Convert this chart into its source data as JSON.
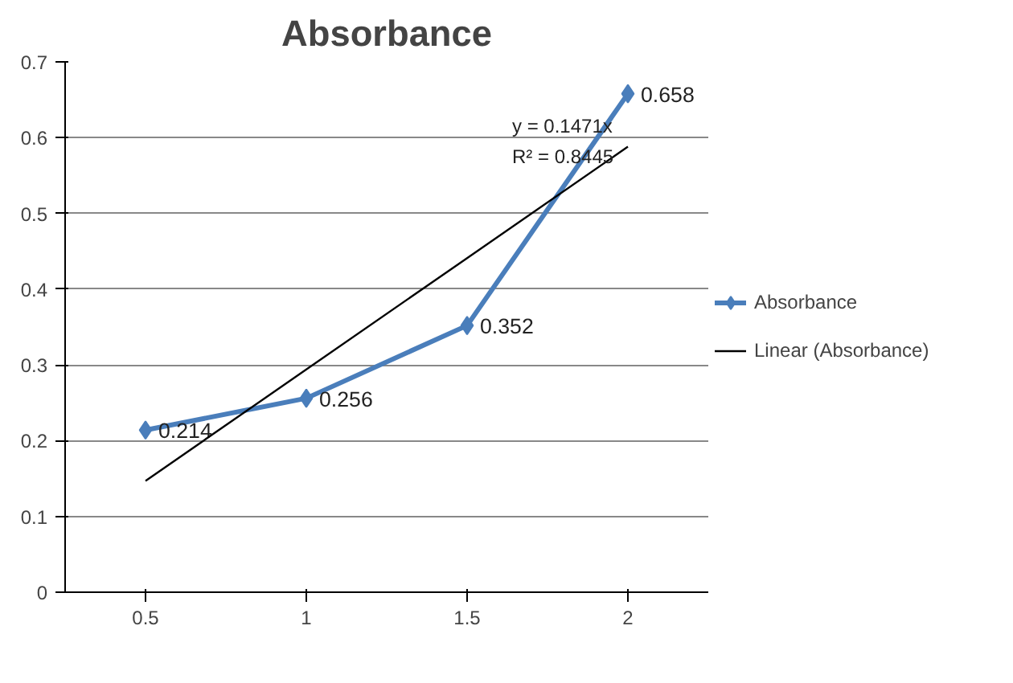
{
  "chart_data": {
    "type": "line",
    "title": "Absorbance",
    "categories": [
      "0.5",
      "1",
      "1.5",
      "2"
    ],
    "series": [
      {
        "name": "Absorbance",
        "color": "#4a7ebb",
        "values": [
          0.214,
          0.256,
          0.352,
          0.658
        ],
        "marker": "diamond",
        "data_labels": true
      },
      {
        "name": "Linear (Absorbance)",
        "color": "#000000",
        "values": [
          0.147,
          0.294,
          0.441,
          0.588
        ],
        "marker": "none"
      }
    ],
    "ylim": [
      0,
      0.7
    ],
    "yticks": [
      0,
      0.1,
      0.2,
      0.3,
      0.4,
      0.5,
      0.6,
      0.7
    ],
    "grid": "y",
    "legend": "right",
    "annotations": [
      "y = 0.1471x",
      "R² = 0.8445"
    ]
  }
}
